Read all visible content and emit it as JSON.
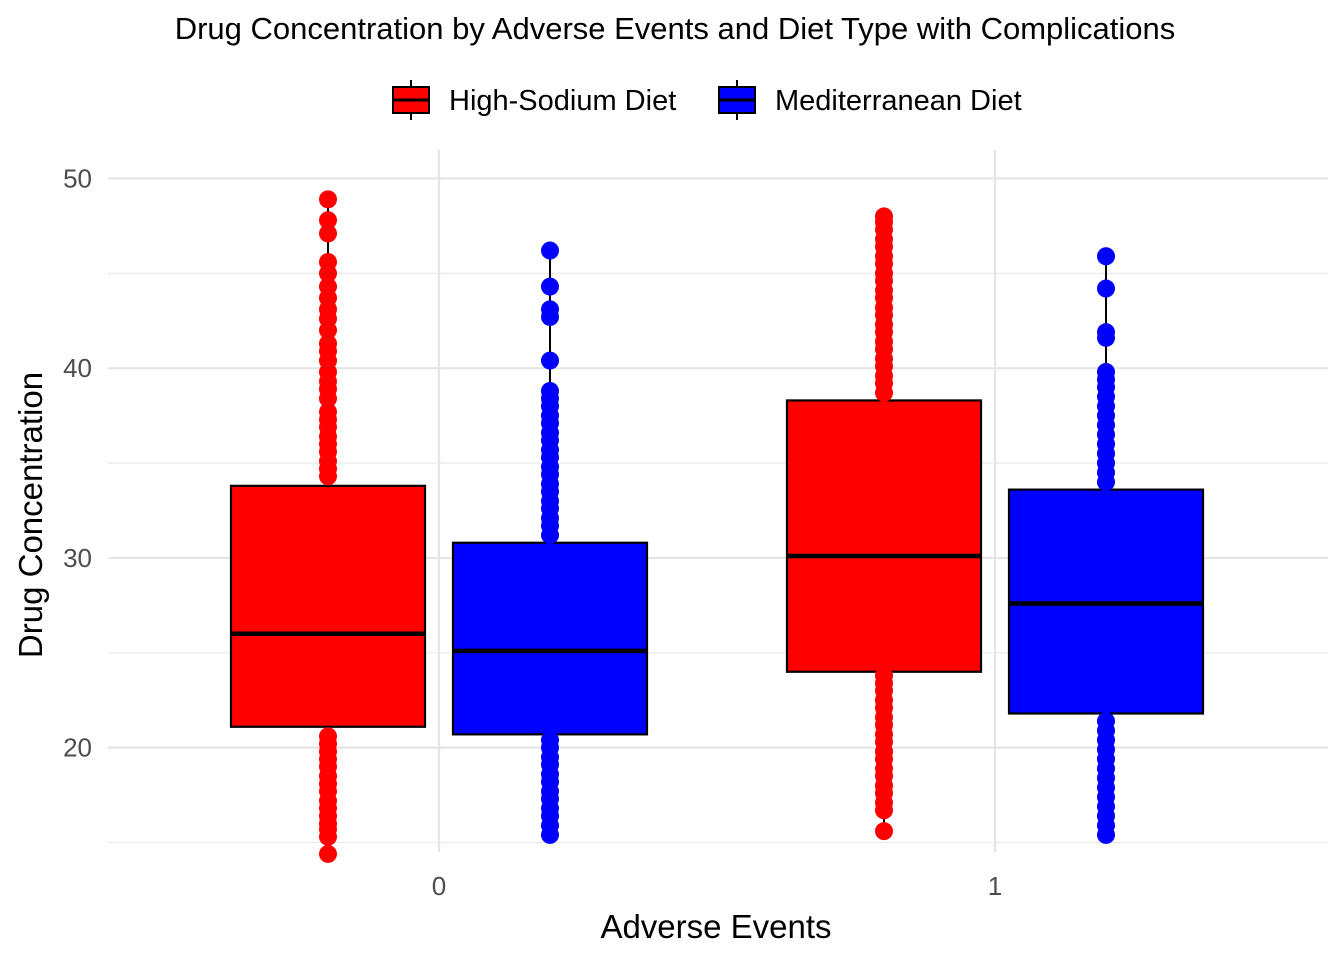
{
  "chart_data": {
    "type": "box",
    "title": "Drug Concentration by Adverse Events and Diet Type with Complications",
    "xlabel": "Adverse Events",
    "ylabel": "Drug Concentration",
    "categories": [
      "0",
      "1"
    ],
    "ylim": [
      14.5,
      51.5
    ],
    "yticks": [
      20,
      30,
      40,
      50
    ],
    "grid": true,
    "legend_position": "top",
    "series": [
      {
        "name": "High-Sodium Diet",
        "color": "#ff0000",
        "boxes": [
          {
            "category": "0",
            "whisker_low": 14.4,
            "q1": 21.1,
            "median": 26.0,
            "q3": 33.8,
            "whisker_high": 48.9,
            "outliers": [
              14.4,
              15.3,
              15.7,
              16.0,
              16.4,
              16.8,
              17.2,
              17.7,
              18.1,
              18.5,
              19.0,
              19.4,
              19.8,
              20.2,
              20.6,
              34.3,
              34.7,
              35.1,
              35.6,
              36.0,
              36.4,
              36.9,
              37.3,
              37.7,
              38.4,
              38.9,
              39.3,
              39.8,
              40.4,
              40.9,
              41.3,
              42.0,
              42.6,
              43.1,
              43.7,
              44.3,
              45.0,
              45.6,
              47.1,
              47.8,
              48.9
            ]
          },
          {
            "category": "1",
            "whisker_low": 15.6,
            "q1": 24.0,
            "median": 30.1,
            "q3": 38.3,
            "whisker_high": 48.0,
            "outliers": [
              15.6,
              16.7,
              17.1,
              17.6,
              18.0,
              18.5,
              18.9,
              19.4,
              19.8,
              20.3,
              20.7,
              21.2,
              21.6,
              22.1,
              22.5,
              23.0,
              23.4,
              23.8,
              38.7,
              39.2,
              39.6,
              40.1,
              40.5,
              41.0,
              41.4,
              41.9,
              42.3,
              42.8,
              43.2,
              43.7,
              44.1,
              44.6,
              45.0,
              45.5,
              45.9,
              46.4,
              46.8,
              47.3,
              47.7,
              48.0
            ]
          }
        ]
      },
      {
        "name": "Mediterranean Diet",
        "color": "#0000ff",
        "boxes": [
          {
            "category": "0",
            "whisker_low": 15.4,
            "q1": 20.7,
            "median": 25.1,
            "q3": 30.8,
            "whisker_high": 46.2,
            "outliers": [
              15.4,
              15.9,
              16.4,
              16.8,
              17.3,
              17.7,
              18.2,
              18.6,
              19.1,
              19.5,
              20.0,
              20.4,
              31.2,
              31.7,
              32.1,
              32.6,
              33.0,
              33.5,
              33.9,
              34.4,
              34.8,
              35.3,
              35.7,
              36.2,
              36.6,
              37.1,
              37.5,
              38.0,
              38.4,
              38.8,
              40.4,
              42.7,
              43.1,
              44.3,
              46.2
            ]
          },
          {
            "category": "1",
            "whisker_low": 15.4,
            "q1": 21.8,
            "median": 27.6,
            "q3": 33.6,
            "whisker_high": 45.9,
            "outliers": [
              15.4,
              15.9,
              16.4,
              16.9,
              17.4,
              17.9,
              18.4,
              18.9,
              19.4,
              19.9,
              20.4,
              20.9,
              21.4,
              34.0,
              34.5,
              35.0,
              35.5,
              36.0,
              36.5,
              37.0,
              37.5,
              38.0,
              38.5,
              39.0,
              39.4,
              39.8,
              41.6,
              41.9,
              44.2,
              45.9
            ]
          }
        ]
      }
    ]
  }
}
